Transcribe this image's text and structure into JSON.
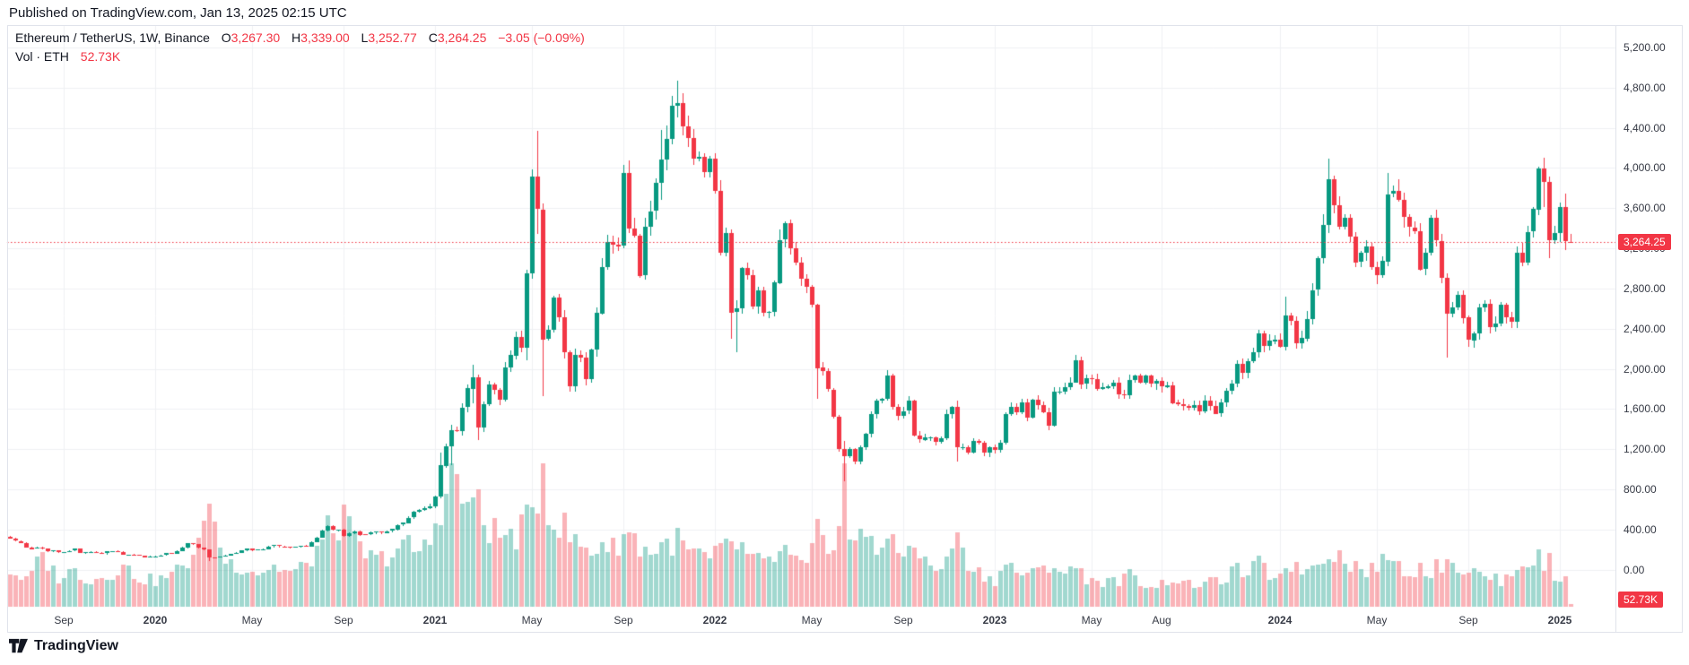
{
  "header": {
    "published": "Published on TradingView.com, Jan 13, 2025 02:15 UTC"
  },
  "legend": {
    "title": "Ethereum / TetherUS, 1W, Binance",
    "o_label": "O",
    "o_value": "3,267.30",
    "h_label": "H",
    "h_value": "3,339.00",
    "l_label": "L",
    "l_value": "3,252.77",
    "c_label": "C",
    "c_value": "3,264.25",
    "change": "−3.05 (−0.09%)",
    "volume_label": "Vol · ETH",
    "volume_value": "52.73K"
  },
  "price_axis": {
    "labels": [
      {
        "text": "5,200.00",
        "value": 5200
      },
      {
        "text": "4,800.00",
        "value": 4800
      },
      {
        "text": "4,400.00",
        "value": 4400
      },
      {
        "text": "4,000.00",
        "value": 4000
      },
      {
        "text": "3,600.00",
        "value": 3600
      },
      {
        "text": "3,200.00",
        "value": 3200
      },
      {
        "text": "2,800.00",
        "value": 2800
      },
      {
        "text": "2,400.00",
        "value": 2400
      },
      {
        "text": "2,000.00",
        "value": 2000
      },
      {
        "text": "1,600.00",
        "value": 1600
      },
      {
        "text": "1,200.00",
        "value": 1200
      },
      {
        "text": "800.00",
        "value": 800
      },
      {
        "text": "400.00",
        "value": 400
      },
      {
        "text": "0.00",
        "value": 0
      }
    ],
    "last_price_badge": "3,264.25",
    "volume_badge": "52.73K"
  },
  "time_axis": {
    "labels": [
      {
        "text": "Sep",
        "week": 10,
        "year": false
      },
      {
        "text": "2020",
        "week": 27,
        "year": true
      },
      {
        "text": "May",
        "week": 45,
        "year": false
      },
      {
        "text": "Sep",
        "week": 62,
        "year": false
      },
      {
        "text": "2021",
        "week": 79,
        "year": true
      },
      {
        "text": "May",
        "week": 97,
        "year": false
      },
      {
        "text": "Sep",
        "week": 114,
        "year": false
      },
      {
        "text": "2022",
        "week": 131,
        "year": true
      },
      {
        "text": "May",
        "week": 149,
        "year": false
      },
      {
        "text": "Sep",
        "week": 166,
        "year": false
      },
      {
        "text": "2023",
        "week": 183,
        "year": true
      },
      {
        "text": "May",
        "week": 201,
        "year": false
      },
      {
        "text": "Aug",
        "week": 214,
        "year": false
      },
      {
        "text": "2024",
        "week": 236,
        "year": true
      },
      {
        "text": "May",
        "week": 254,
        "year": false
      },
      {
        "text": "Sep",
        "week": 271,
        "year": false
      },
      {
        "text": "2025",
        "week": 288,
        "year": true
      }
    ]
  },
  "footer": {
    "logo_text": "TradingView"
  },
  "colors": {
    "up": "#089981",
    "down": "#f23645",
    "vol_up": "rgba(8,153,129,0.38)",
    "vol_down": "rgba(242,54,69,0.38)",
    "grid": "#f0f1f4",
    "frame": "#e0e3eb",
    "axis_text": "#363a45",
    "text": "#131722",
    "price_line": "#f23645",
    "badge_bg": "#f23645"
  },
  "chart_data": {
    "type": "candlestick+volume",
    "symbol": "Ethereum / TetherUS",
    "ticker": "ETHUSDT",
    "exchange": "Binance",
    "interval": "1W",
    "start_week": "2019-06-24",
    "title": "Ethereum / TetherUS, 1W, Binance",
    "ylim": [
      0,
      5422
    ],
    "y_gridline_step": 400,
    "grid": true,
    "price_line_value": 3264.25,
    "last_candle": {
      "open": 3267.3,
      "high": 3339.0,
      "low": 3252.77,
      "close": 3264.25,
      "change": -3.05,
      "change_pct": -0.09,
      "volume_eth": "52.73K"
    },
    "first_open": 330,
    "closes": [
      310,
      288,
      268,
      225,
      211,
      222,
      209,
      185,
      194,
      178,
      180,
      189,
      210,
      166,
      176,
      180,
      172,
      162,
      184,
      185,
      180,
      151,
      152,
      147,
      142,
      128,
      134,
      136,
      144,
      166,
      162,
      188,
      223,
      265,
      256,
      217,
      199,
      123,
      122,
      131,
      144,
      158,
      170,
      194,
      210,
      194,
      200,
      207,
      231,
      244,
      231,
      228,
      221,
      227,
      239,
      233,
      279,
      322,
      390,
      433,
      395,
      398,
      335,
      366,
      385,
      353,
      350,
      370,
      378,
      368,
      383,
      405,
      448,
      470,
      520,
      577,
      595,
      615,
      636,
      730,
      1041,
      1233,
      1392,
      1380,
      1614,
      1805,
      1920,
      1420,
      1650,
      1845,
      1790,
      1688,
      2010,
      2135,
      2320,
      2213,
      2950,
      3910,
      3586,
      2295,
      2386,
      2710,
      2510,
      2165,
      1830,
      2140,
      2110,
      1893,
      2190,
      2555,
      3015,
      3265,
      3240,
      3225,
      3950,
      3400,
      3330,
      2930,
      3415,
      3570,
      3850,
      4080,
      4288,
      4620,
      4644,
      4410,
      4296,
      4090,
      4110,
      3960,
      4090,
      3769,
      3150,
      3350,
      2560,
      2600,
      3000,
      2930,
      2620,
      2780,
      2555,
      2565,
      2860,
      3285,
      3450,
      3200,
      3060,
      2900,
      2820,
      2640,
      2010,
      1975,
      1795,
      1528,
      1205,
      1130,
      1200,
      1075,
      1218,
      1355,
      1550,
      1680,
      1700,
      1935,
      1620,
      1530,
      1578,
      1680,
      1335,
      1295,
      1320,
      1320,
      1275,
      1310,
      1550,
      1620,
      1215,
      1220,
      1170,
      1285,
      1265,
      1165,
      1220,
      1195,
      1265,
      1550,
      1625,
      1570,
      1665,
      1515,
      1695,
      1640,
      1565,
      1430,
      1770,
      1775,
      1820,
      1865,
      2090,
      1850,
      1905,
      1900,
      1800,
      1815,
      1830,
      1865,
      1750,
      1740,
      1890,
      1935,
      1865,
      1935,
      1855,
      1880,
      1825,
      1840,
      1665,
      1650,
      1635,
      1615,
      1640,
      1580,
      1685,
      1635,
      1555,
      1665,
      1780,
      1855,
      2050,
      1960,
      2080,
      2165,
      2355,
      2230,
      2280,
      2295,
      2220,
      2530,
      2475,
      2255,
      2305,
      2500,
      2785,
      3100,
      3430,
      3885,
      3630,
      3420,
      3505,
      3320,
      3065,
      3155,
      3218,
      3015,
      2935,
      3075,
      3740,
      3770,
      3680,
      3510,
      3410,
      3370,
      2990,
      3155,
      3500,
      3275,
      2910,
      2550,
      2615,
      2740,
      2510,
      2285,
      2355,
      2615,
      2650,
      2415,
      2455,
      2640,
      2515,
      2470,
      3155,
      3060,
      3365,
      3592,
      3998,
      3862,
      3286,
      3355,
      3610,
      3267,
      3264.25
    ],
    "wick_overrides": {
      "37": [
        205,
        90
      ],
      "80": [
        1170,
        716
      ],
      "82": [
        1440,
        1040
      ],
      "86": [
        2042,
        1660
      ],
      "87": [
        1940,
        1293
      ],
      "96": [
        2990,
        2090
      ],
      "97": [
        3985,
        2900
      ],
      "98": [
        4372,
        3350
      ],
      "99": [
        3650,
        1730
      ],
      "114": [
        4027,
        3200
      ],
      "121": [
        4375,
        3675
      ],
      "124": [
        4868,
        4500
      ],
      "134": [
        3390,
        2300
      ],
      "135": [
        2680,
        2160
      ],
      "150": [
        2650,
        1700
      ],
      "155": [
        1280,
        881
      ],
      "176": [
        1680,
        1074
      ],
      "198": [
        2140,
        1860
      ],
      "237": [
        2717,
        2180
      ],
      "245": [
        4093,
        3350
      ],
      "256": [
        3949,
        3025
      ],
      "267": [
        2950,
        2111
      ],
      "284": [
        4014,
        3530
      ],
      "285": [
        4106,
        3617
      ],
      "286": [
        3917,
        3101
      ],
      "289": [
        3744,
        3180
      ],
      "290": [
        3339,
        3252.77
      ]
    },
    "volume_anchors": [
      [
        0,
        0.25
      ],
      [
        3,
        0.18
      ],
      [
        6,
        0.35
      ],
      [
        9,
        0.2
      ],
      [
        12,
        0.25
      ],
      [
        15,
        0.18
      ],
      [
        18,
        0.22
      ],
      [
        21,
        0.28
      ],
      [
        24,
        0.2
      ],
      [
        27,
        0.18
      ],
      [
        30,
        0.22
      ],
      [
        33,
        0.32
      ],
      [
        36,
        0.5
      ],
      [
        37,
        0.85
      ],
      [
        38,
        0.55
      ],
      [
        40,
        0.32
      ],
      [
        43,
        0.28
      ],
      [
        46,
        0.24
      ],
      [
        49,
        0.28
      ],
      [
        52,
        0.24
      ],
      [
        55,
        0.28
      ],
      [
        57,
        0.4
      ],
      [
        59,
        0.52
      ],
      [
        62,
        0.6
      ],
      [
        64,
        0.44
      ],
      [
        66,
        0.36
      ],
      [
        68,
        0.32
      ],
      [
        70,
        0.35
      ],
      [
        72,
        0.4
      ],
      [
        74,
        0.42
      ],
      [
        76,
        0.38
      ],
      [
        78,
        0.45
      ],
      [
        80,
        0.72
      ],
      [
        81,
        0.8
      ],
      [
        82,
        0.99
      ],
      [
        83,
        0.88
      ],
      [
        84,
        0.78
      ],
      [
        85,
        0.7
      ],
      [
        86,
        0.64
      ],
      [
        87,
        0.82
      ],
      [
        88,
        0.58
      ],
      [
        90,
        0.52
      ],
      [
        92,
        0.48
      ],
      [
        94,
        0.5
      ],
      [
        96,
        0.58
      ],
      [
        97,
        0.66
      ],
      [
        98,
        0.78
      ],
      [
        99,
        1.0
      ],
      [
        100,
        0.72
      ],
      [
        101,
        0.58
      ],
      [
        103,
        0.55
      ],
      [
        104,
        0.48
      ],
      [
        106,
        0.42
      ],
      [
        108,
        0.38
      ],
      [
        110,
        0.45
      ],
      [
        112,
        0.4
      ],
      [
        114,
        0.5
      ],
      [
        115,
        0.52
      ],
      [
        117,
        0.42
      ],
      [
        119,
        0.38
      ],
      [
        121,
        0.42
      ],
      [
        123,
        0.45
      ],
      [
        124,
        0.46
      ],
      [
        126,
        0.38
      ],
      [
        128,
        0.36
      ],
      [
        130,
        0.32
      ],
      [
        132,
        0.38
      ],
      [
        134,
        0.45
      ],
      [
        136,
        0.4
      ],
      [
        138,
        0.32
      ],
      [
        140,
        0.3
      ],
      [
        142,
        0.34
      ],
      [
        144,
        0.38
      ],
      [
        146,
        0.3
      ],
      [
        148,
        0.27
      ],
      [
        150,
        0.5
      ],
      [
        152,
        0.4
      ],
      [
        154,
        0.6
      ],
      [
        155,
        0.92
      ],
      [
        156,
        0.5
      ],
      [
        157,
        0.42
      ],
      [
        158,
        0.48
      ],
      [
        160,
        0.52
      ],
      [
        161,
        0.42
      ],
      [
        163,
        0.46
      ],
      [
        165,
        0.36
      ],
      [
        167,
        0.4
      ],
      [
        168,
        0.48
      ],
      [
        170,
        0.3
      ],
      [
        172,
        0.26
      ],
      [
        174,
        0.3
      ],
      [
        176,
        0.55
      ],
      [
        177,
        0.35
      ],
      [
        179,
        0.27
      ],
      [
        181,
        0.22
      ],
      [
        183,
        0.18
      ],
      [
        185,
        0.3
      ],
      [
        187,
        0.25
      ],
      [
        189,
        0.22
      ],
      [
        191,
        0.24
      ],
      [
        193,
        0.3
      ],
      [
        195,
        0.26
      ],
      [
        197,
        0.24
      ],
      [
        198,
        0.28
      ],
      [
        200,
        0.2
      ],
      [
        203,
        0.17
      ],
      [
        206,
        0.18
      ],
      [
        208,
        0.22
      ],
      [
        210,
        0.17
      ],
      [
        213,
        0.14
      ],
      [
        216,
        0.2
      ],
      [
        219,
        0.15
      ],
      [
        222,
        0.16
      ],
      [
        225,
        0.18
      ],
      [
        228,
        0.26
      ],
      [
        230,
        0.22
      ],
      [
        232,
        0.3
      ],
      [
        234,
        0.22
      ],
      [
        236,
        0.22
      ],
      [
        237,
        0.33
      ],
      [
        239,
        0.26
      ],
      [
        241,
        0.26
      ],
      [
        243,
        0.32
      ],
      [
        245,
        0.4
      ],
      [
        247,
        0.36
      ],
      [
        249,
        0.3
      ],
      [
        251,
        0.26
      ],
      [
        253,
        0.26
      ],
      [
        255,
        0.3
      ],
      [
        256,
        0.38
      ],
      [
        258,
        0.28
      ],
      [
        260,
        0.24
      ],
      [
        262,
        0.28
      ],
      [
        264,
        0.24
      ],
      [
        266,
        0.3
      ],
      [
        267,
        0.38
      ],
      [
        269,
        0.26
      ],
      [
        271,
        0.26
      ],
      [
        273,
        0.22
      ],
      [
        275,
        0.2
      ],
      [
        277,
        0.18
      ],
      [
        279,
        0.22
      ],
      [
        280,
        0.3
      ],
      [
        281,
        0.32
      ],
      [
        283,
        0.31
      ],
      [
        284,
        0.33
      ],
      [
        285,
        0.28
      ],
      [
        286,
        0.36
      ],
      [
        287,
        0.18
      ],
      [
        288,
        0.18
      ],
      [
        289,
        0.25
      ],
      [
        290,
        0.02
      ]
    ]
  }
}
